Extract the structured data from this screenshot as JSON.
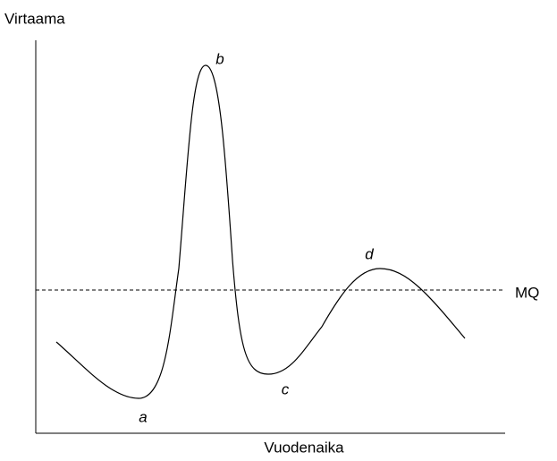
{
  "y_axis_label": "Virtaama",
  "x_axis_label": "Vuodenaika",
  "reference_line_label": "MQ",
  "points": [
    {
      "label": "a"
    },
    {
      "label": "b"
    },
    {
      "label": "c"
    },
    {
      "label": "d"
    }
  ]
}
